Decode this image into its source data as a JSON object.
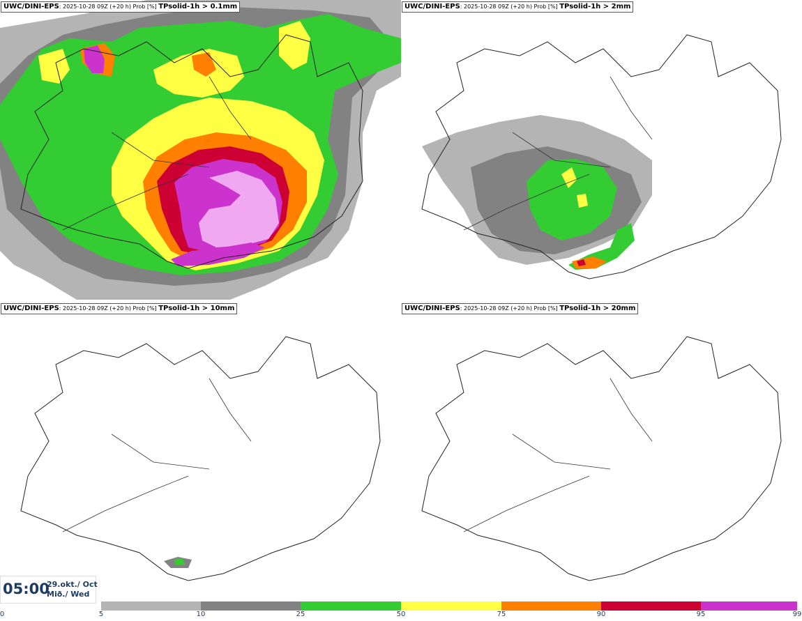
{
  "panels": [
    {
      "model": "UWC/DINI-EPS",
      "run": ": 2025-10-28 09Z (+20 h) Prob [%] ",
      "param": "TPsolid-1h > 0.1mm"
    },
    {
      "model": "UWC/DINI-EPS",
      "run": ": 2025-10-28 09Z (+20 h) Prob [%] ",
      "param": "TPsolid-1h > 2mm"
    },
    {
      "model": "UWC/DINI-EPS",
      "run": ": 2025-10-28 09Z (+20 h) Prob [%] ",
      "param": "TPsolid-1h > 10mm"
    },
    {
      "model": "UWC/DINI-EPS",
      "run": ": 2025-10-28 09Z (+20 h) Prob [%] ",
      "param": "TPsolid-1h > 20mm"
    }
  ],
  "valid_time": {
    "time": "05:00",
    "date_line1": "29.okt./ Oct",
    "date_line2": "Mið./ Wed"
  },
  "legend": {
    "thresholds": [
      "0",
      "5",
      "10",
      "25",
      "50",
      "75",
      "90",
      "95",
      "99"
    ],
    "colors": [
      "#ffffff",
      "#b4b4b4",
      "#828282",
      "#33cc33",
      "#ffff44",
      "#ff7f00",
      "#cc0033",
      "#cc33cc",
      "#f0a8f0"
    ]
  }
}
